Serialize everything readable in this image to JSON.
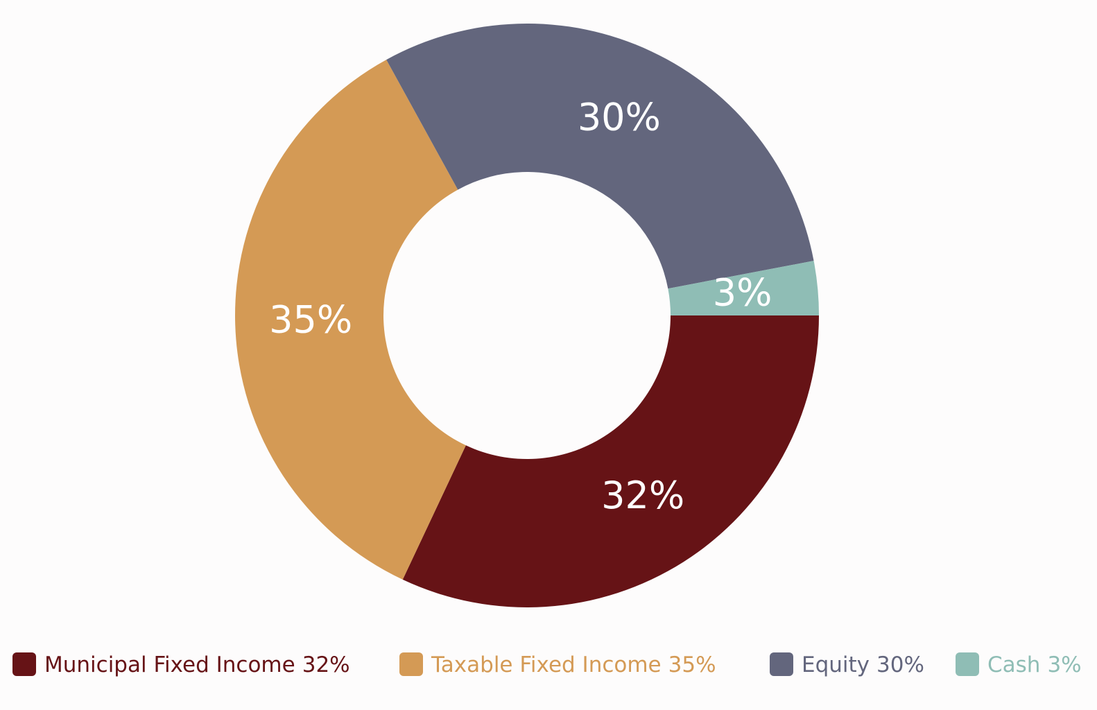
{
  "chart_data": {
    "type": "donut",
    "series": [
      {
        "name": "Municipal Fixed Income",
        "color": "#661316",
        "value": 32,
        "value_label": "32%"
      },
      {
        "name": "Taxable Fixed Income",
        "color": "#d49a55",
        "value": 35,
        "value_label": "35%"
      },
      {
        "name": "Equity",
        "color": "#63667d",
        "value": 30,
        "value_label": "30%"
      },
      {
        "name": "Cash",
        "color": "#8fbdb5",
        "value": 3,
        "value_label": "3%"
      }
    ]
  }
}
